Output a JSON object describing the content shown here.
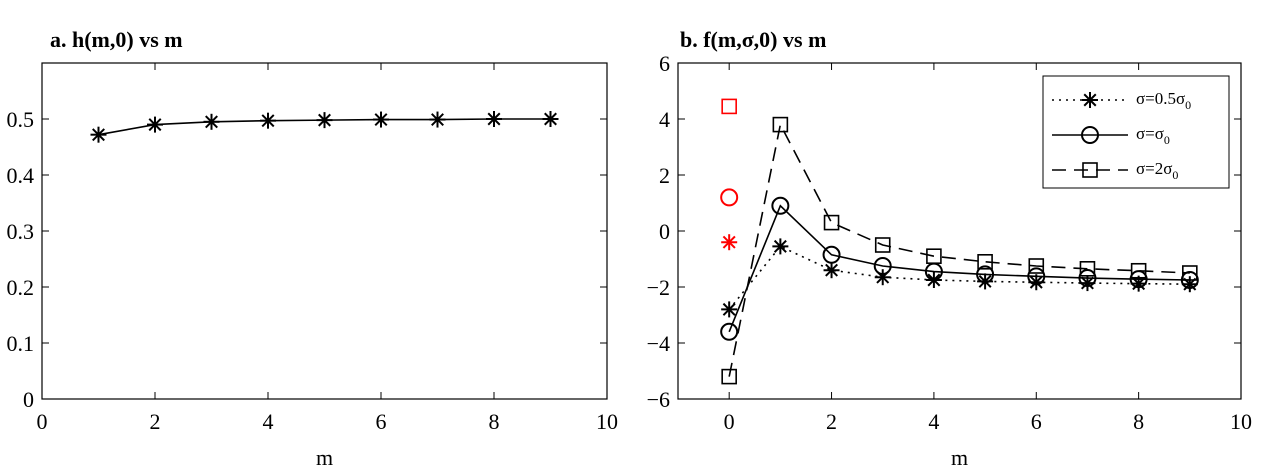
{
  "chart_data": [
    {
      "type": "line",
      "title": "a. h(m,0) vs m",
      "xlabel": "m",
      "ylabel": "",
      "xlim": [
        0,
        10
      ],
      "ylim": [
        0,
        0.6
      ],
      "xticks": [
        "0",
        "2",
        "4",
        "6",
        "8",
        "10"
      ],
      "yticks": [
        "0",
        "0.1",
        "0.2",
        "0.3",
        "0.4",
        "0.5"
      ],
      "grid": false,
      "series": [
        {
          "marker": "asterisk",
          "linestyle": "solid",
          "color": "#000000",
          "x": [
            1,
            2,
            3,
            4,
            5,
            6,
            7,
            8,
            9
          ],
          "y": [
            0.472,
            0.49,
            0.495,
            0.497,
            0.498,
            0.499,
            0.499,
            0.5,
            0.5
          ]
        }
      ]
    },
    {
      "type": "line",
      "title": "b. f(m,σ,0) vs m",
      "xlabel": "m",
      "ylabel": "",
      "xlim": [
        -1,
        10
      ],
      "ylim": [
        -6,
        6
      ],
      "xticks": [
        "0",
        "2",
        "4",
        "6",
        "8",
        "10"
      ],
      "yticks": [
        "−6",
        "−4",
        "−2",
        "0",
        "2",
        "4",
        "6"
      ],
      "grid": false,
      "legend_position": "top-right",
      "series": [
        {
          "name": "σ=0.5σ0",
          "legend_main": "σ=0.5σ",
          "legend_sub": "0",
          "marker": "asterisk",
          "linestyle": "dotted",
          "color": "#000000",
          "x": [
            0,
            1,
            2,
            3,
            4,
            5,
            6,
            7,
            8,
            9
          ],
          "y": [
            -2.8,
            -0.55,
            -1.4,
            -1.65,
            -1.75,
            -1.8,
            -1.83,
            -1.86,
            -1.88,
            -1.9
          ]
        },
        {
          "name": "σ=σ0",
          "legend_main": "σ=σ",
          "legend_sub": "0",
          "marker": "circle",
          "linestyle": "solid",
          "color": "#000000",
          "x": [
            0,
            1,
            2,
            3,
            4,
            5,
            6,
            7,
            8,
            9
          ],
          "y": [
            -3.6,
            0.9,
            -0.85,
            -1.25,
            -1.45,
            -1.55,
            -1.62,
            -1.68,
            -1.72,
            -1.75
          ]
        },
        {
          "name": "σ=2σ0",
          "legend_main": "σ=2σ",
          "legend_sub": "0",
          "marker": "square",
          "linestyle": "dashed",
          "color": "#000000",
          "x": [
            0,
            1,
            2,
            3,
            4,
            5,
            6,
            7,
            8,
            9
          ],
          "y": [
            -5.2,
            3.8,
            0.3,
            -0.5,
            -0.9,
            -1.1,
            -1.25,
            -1.35,
            -1.42,
            -1.5
          ]
        }
      ],
      "red_points": [
        {
          "marker": "asterisk",
          "color": "#ff0000",
          "x": 0,
          "y": -0.4
        },
        {
          "marker": "circle",
          "color": "#ff0000",
          "x": 0,
          "y": 1.2
        },
        {
          "marker": "square",
          "color": "#ff0000",
          "x": 0,
          "y": 4.45
        }
      ]
    }
  ]
}
